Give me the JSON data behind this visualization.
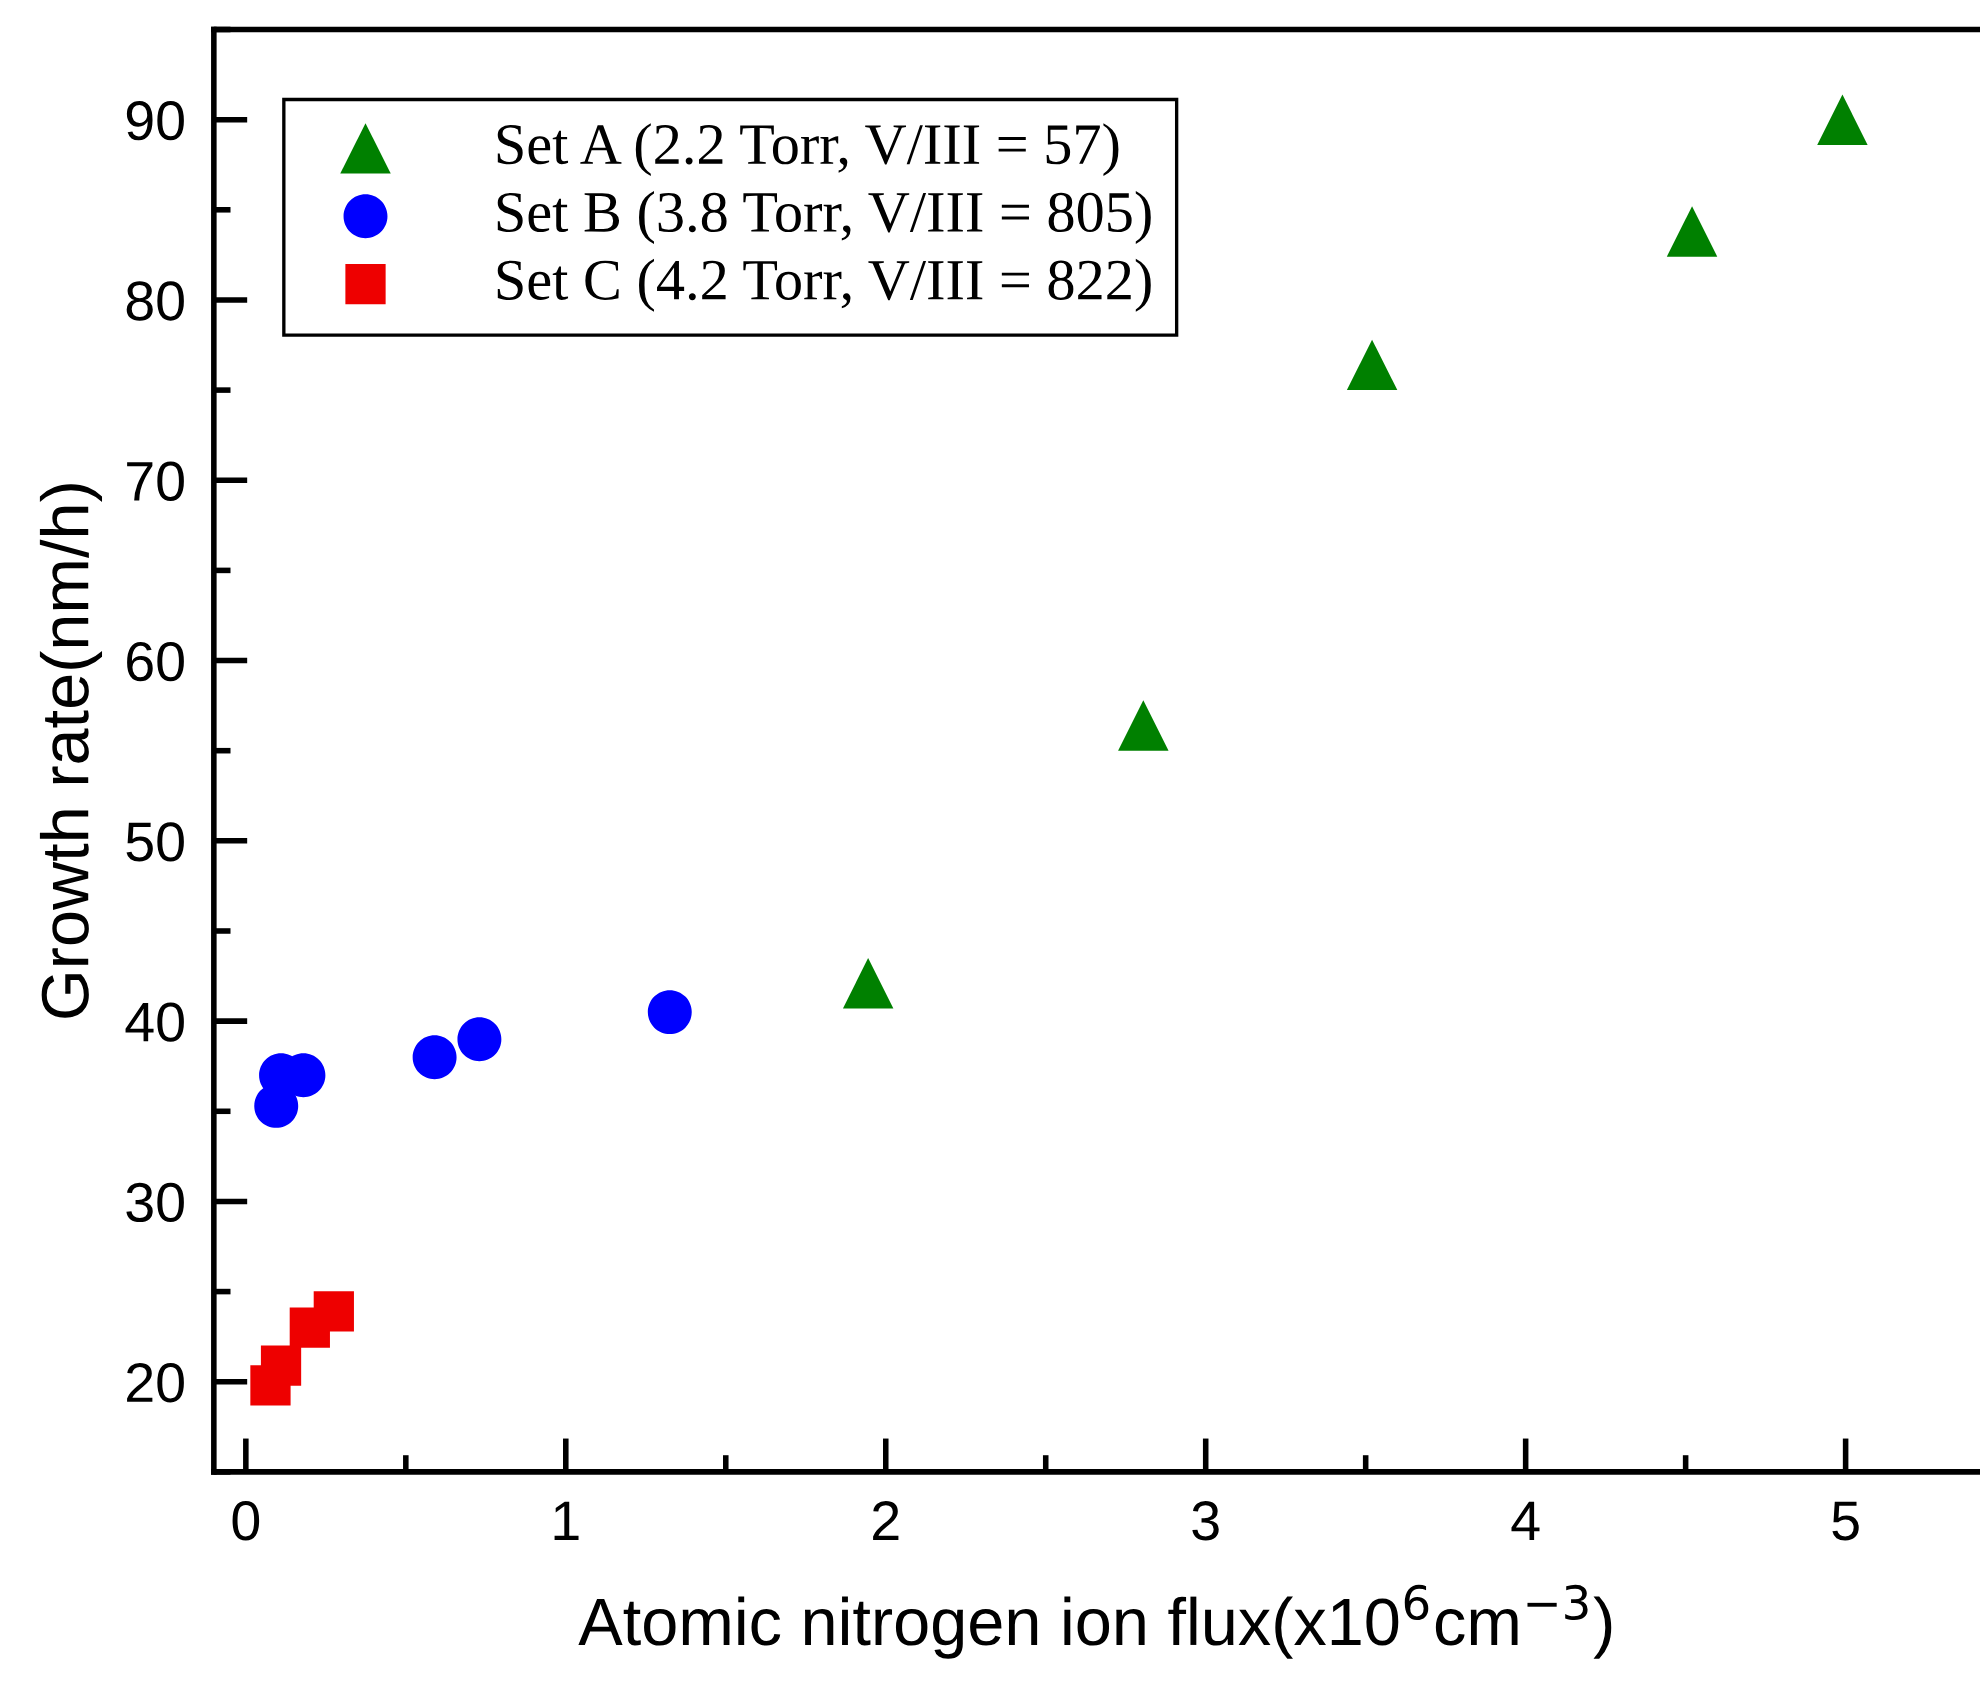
{
  "chart_data": {
    "type": "scatter",
    "xlabel": "Atomic nitrogen ion flux(x10$^{6}$cm$^{−3}$)",
    "ylabel": "Growth rate(nm/h)",
    "xlim": [
      -0.1,
      5.42
    ],
    "ylim": [
      15,
      95
    ],
    "xticks": [
      0,
      1,
      2,
      3,
      4,
      5
    ],
    "yticks": [
      20,
      30,
      40,
      50,
      60,
      70,
      80,
      90
    ],
    "legend": "top left",
    "grid": false,
    "series": [
      {
        "name": "Set A (2.2 Torr, V/III = 57)",
        "color": "#008000",
        "marker": "triangle",
        "x": [
          1.945,
          2.805,
          3.52,
          4.52,
          4.99
        ],
        "values": [
          42.1,
          56.4,
          76.4,
          83.8,
          90.0
        ]
      },
      {
        "name": "Set B (3.8 Torr, V/III = 805)",
        "color": "#0000ff",
        "marker": "circle",
        "x": [
          0.095,
          0.11,
          0.18,
          0.59,
          0.73,
          1.325
        ],
        "values": [
          35.3,
          37.0,
          37.0,
          38.0,
          39.0,
          40.5
        ]
      },
      {
        "name": "Set C (4.2 Torr, V/III = 822)",
        "color": "#ee0000",
        "marker": "square",
        "x": [
          0.077,
          0.11,
          0.2,
          0.275
        ],
        "values": [
          19.8,
          20.9,
          23.0,
          23.9
        ]
      }
    ]
  }
}
